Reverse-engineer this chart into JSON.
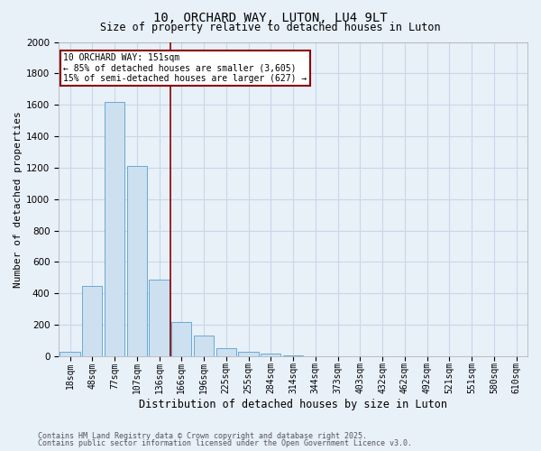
{
  "title1": "10, ORCHARD WAY, LUTON, LU4 9LT",
  "title2": "Size of property relative to detached houses in Luton",
  "xlabel": "Distribution of detached houses by size in Luton",
  "ylabel": "Number of detached properties",
  "categories": [
    "18sqm",
    "48sqm",
    "77sqm",
    "107sqm",
    "136sqm",
    "166sqm",
    "196sqm",
    "225sqm",
    "255sqm",
    "284sqm",
    "314sqm",
    "344sqm",
    "373sqm",
    "403sqm",
    "432sqm",
    "462sqm",
    "492sqm",
    "521sqm",
    "551sqm",
    "580sqm",
    "610sqm"
  ],
  "values": [
    30,
    450,
    1620,
    1210,
    490,
    220,
    130,
    50,
    30,
    15,
    8,
    0,
    0,
    0,
    0,
    0,
    0,
    0,
    0,
    0,
    0
  ],
  "bar_color": "#cce0f0",
  "bar_edge_color": "#6aaad4",
  "grid_color": "#c8d8e8",
  "bg_color": "#e8f0f8",
  "vline_color": "#8b0000",
  "annotation_line1": "10 ORCHARD WAY: 151sqm",
  "annotation_line2": "← 85% of detached houses are smaller (3,605)",
  "annotation_line3": "15% of semi-detached houses are larger (627) →",
  "annotation_box_color": "white",
  "annotation_box_edge": "#8b0000",
  "ylim": [
    0,
    2000
  ],
  "yticks": [
    0,
    200,
    400,
    600,
    800,
    1000,
    1200,
    1400,
    1600,
    1800,
    2000
  ],
  "footer1": "Contains HM Land Registry data © Crown copyright and database right 2025.",
  "footer2": "Contains public sector information licensed under the Open Government Licence v3.0.",
  "title_fontsize": 10,
  "subtitle_fontsize": 8.5,
  "ylabel_fontsize": 8,
  "xlabel_fontsize": 8.5,
  "tick_fontsize": 7,
  "annot_fontsize": 7,
  "footer_fontsize": 6
}
